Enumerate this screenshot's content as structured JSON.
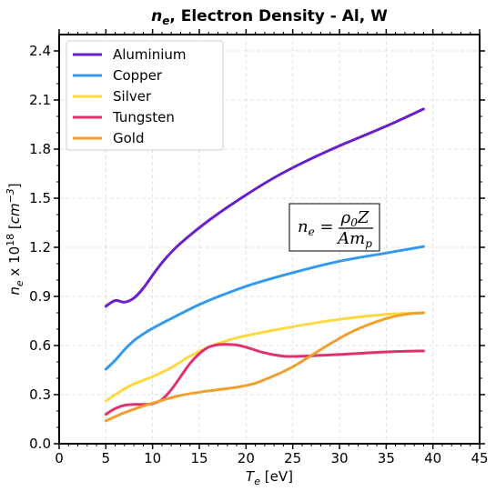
{
  "chart_data": {
    "type": "line",
    "title": "n_e, Electron Density - Al, W",
    "title_parts": {
      "symbol": "n",
      "subscript": "e",
      "rest": ", Electron Density - Al, W"
    },
    "xlabel": "T_e [eV]",
    "xlabel_parts": {
      "symbol": "T",
      "subscript": "e",
      "rest": " [eV]"
    },
    "ylabel": "n_e x 10^18 [cm^-3]",
    "ylabel_parts": {
      "symbol": "n",
      "subscript": "e",
      "mid": " x 10",
      "sup": "18",
      "unit_open": " [",
      "unit": "cm",
      "unit_sup": "−3",
      "unit_close": "]"
    },
    "xlim": [
      0,
      45
    ],
    "ylim": [
      0,
      2.5
    ],
    "xticks": [
      "0",
      "5",
      "10",
      "15",
      "20",
      "25",
      "30",
      "35",
      "40",
      "45"
    ],
    "yticks": [
      "0.0",
      "0.3",
      "0.6",
      "0.9",
      "1.2",
      "1.5",
      "1.8",
      "2.1",
      "2.4"
    ],
    "grid": true,
    "legend_position": "top-left",
    "annotation": "n_e = ρ0 Z / (A m_p)",
    "series": [
      {
        "name": "Aluminium",
        "color": "#6a1fcc",
        "x": [
          5,
          6,
          7,
          8,
          9,
          10,
          11,
          12,
          13,
          15,
          17,
          20,
          23,
          26,
          30,
          35,
          39
        ],
        "y": [
          0.84,
          0.875,
          0.865,
          0.89,
          0.95,
          1.03,
          1.105,
          1.17,
          1.225,
          1.32,
          1.405,
          1.52,
          1.625,
          1.715,
          1.82,
          1.94,
          2.045
        ]
      },
      {
        "name": "Copper",
        "color": "#3399ee",
        "x": [
          5,
          6,
          7,
          8,
          9,
          10,
          12,
          15,
          18,
          21,
          25,
          30,
          35,
          39
        ],
        "y": [
          0.455,
          0.51,
          0.575,
          0.63,
          0.67,
          0.705,
          0.765,
          0.85,
          0.92,
          0.98,
          1.045,
          1.115,
          1.165,
          1.205
        ]
      },
      {
        "name": "Silver",
        "color": "#ffd83d",
        "x": [
          5,
          6,
          7,
          8,
          10,
          12,
          14,
          16,
          18,
          20,
          25,
          30,
          35,
          39
        ],
        "y": [
          0.26,
          0.3,
          0.335,
          0.365,
          0.41,
          0.465,
          0.535,
          0.59,
          0.63,
          0.66,
          0.715,
          0.76,
          0.79,
          0.8
        ]
      },
      {
        "name": "Tungsten",
        "color": "#e03070",
        "x": [
          5,
          6,
          7,
          8,
          9,
          10,
          11,
          12,
          13,
          14,
          15,
          16,
          17,
          18,
          19,
          20,
          22,
          24,
          26,
          28,
          30,
          33,
          36,
          39
        ],
        "y": [
          0.18,
          0.215,
          0.235,
          0.24,
          0.24,
          0.245,
          0.27,
          0.33,
          0.41,
          0.49,
          0.55,
          0.59,
          0.605,
          0.607,
          0.603,
          0.59,
          0.555,
          0.535,
          0.535,
          0.54,
          0.545,
          0.555,
          0.563,
          0.567
        ]
      },
      {
        "name": "Gold",
        "color": "#f0a030",
        "x": [
          5,
          7,
          9,
          11,
          13,
          15,
          17,
          19,
          21,
          23,
          25,
          27,
          29,
          31,
          33,
          35,
          37,
          39
        ],
        "y": [
          0.14,
          0.19,
          0.23,
          0.265,
          0.295,
          0.315,
          0.33,
          0.345,
          0.37,
          0.415,
          0.47,
          0.54,
          0.61,
          0.675,
          0.725,
          0.765,
          0.79,
          0.8
        ]
      }
    ]
  }
}
